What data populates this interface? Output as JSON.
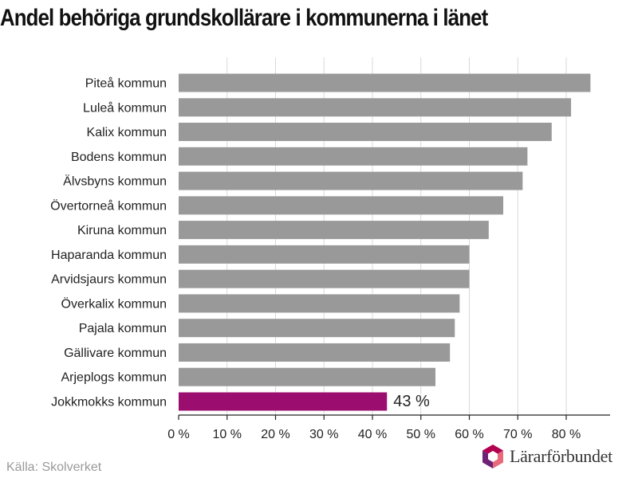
{
  "title": "Andel behöriga grundskollärare i kommunerna i länet",
  "source": "Källa: Skolverket",
  "logo_text": "Lärarförbundet",
  "colors": {
    "bar_default": "#999999",
    "bar_highlight": "#9b0d6e",
    "grid": "#d9d9d9",
    "axis": "#222222",
    "label": "#222222",
    "logo_top": "#b0004f",
    "logo_left": "#6d2277",
    "logo_right": "#e86a7a"
  },
  "chart_data": {
    "type": "bar",
    "orientation": "horizontal",
    "categories": [
      "Piteå kommun",
      "Luleå kommun",
      "Kalix kommun",
      "Bodens kommun",
      "Älvsbyns kommun",
      "Övertorneå kommun",
      "Kiruna kommun",
      "Haparanda kommun",
      "Arvidsjaurs kommun",
      "Överkalix kommun",
      "Pajala kommun",
      "Gällivare kommun",
      "Arjeplogs kommun",
      "Jokkmokks kommun"
    ],
    "values": [
      85,
      81,
      77,
      72,
      71,
      67,
      64,
      60,
      60,
      58,
      57,
      56,
      53,
      43
    ],
    "highlight_index": 13,
    "highlight_label": "43 %",
    "xlim": [
      0,
      90
    ],
    "xticks": [
      0,
      10,
      20,
      30,
      40,
      50,
      60,
      70,
      80
    ],
    "xtick_labels": [
      "0 %",
      "10 %",
      "20 %",
      "30 %",
      "40 %",
      "50 %",
      "60 %",
      "70 %",
      "80 %"
    ],
    "xlabel": "",
    "ylabel": "",
    "grid": "vertical",
    "legend": "none"
  }
}
